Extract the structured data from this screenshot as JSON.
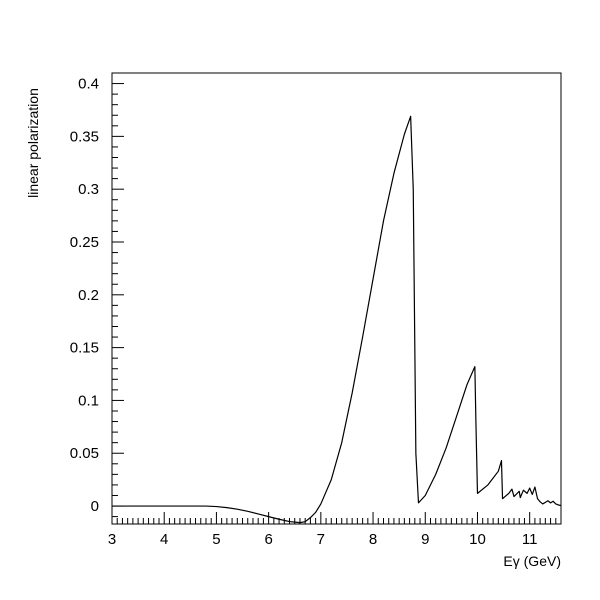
{
  "chart_data": {
    "type": "line",
    "title": "",
    "xlabel": "Eγ (GeV)",
    "ylabel": "linear polarization",
    "xlim": [
      3,
      11.6
    ],
    "ylim": [
      -0.017,
      0.41
    ],
    "x_ticks": [
      "3",
      "4",
      "5",
      "6",
      "7",
      "8",
      "9",
      "10",
      "11"
    ],
    "y_ticks": [
      "0",
      "0.05",
      "0.1",
      "0.15",
      "0.2",
      "0.25",
      "0.3",
      "0.35",
      "0.4"
    ],
    "grid": false,
    "series": [
      {
        "name": "",
        "x": [
          3.0,
          4.0,
          4.8,
          5.0,
          5.2,
          5.4,
          5.6,
          5.8,
          6.0,
          6.2,
          6.4,
          6.6,
          6.7,
          6.8,
          6.9,
          7.0,
          7.2,
          7.4,
          7.6,
          7.8,
          8.0,
          8.2,
          8.4,
          8.6,
          8.72,
          8.77,
          8.82,
          8.87,
          9.0,
          9.2,
          9.4,
          9.6,
          9.8,
          9.95,
          9.97,
          10.0,
          10.2,
          10.4,
          10.46,
          10.48,
          10.6,
          10.66,
          10.7,
          10.8,
          10.82,
          10.88,
          10.95,
          11.0,
          11.05,
          11.1,
          11.15,
          11.2,
          11.25,
          11.3,
          11.35,
          11.4,
          11.45,
          11.5,
          11.55,
          11.6
        ],
        "y": [
          0.0,
          0.0,
          0.0,
          -0.0005,
          -0.0015,
          -0.003,
          -0.005,
          -0.0075,
          -0.01,
          -0.0125,
          -0.0147,
          -0.0157,
          -0.0148,
          -0.011,
          -0.006,
          0.002,
          0.025,
          0.06,
          0.107,
          0.16,
          0.215,
          0.27,
          0.315,
          0.352,
          0.369,
          0.3,
          0.05,
          0.003,
          0.01,
          0.03,
          0.055,
          0.085,
          0.115,
          0.132,
          0.08,
          0.012,
          0.02,
          0.033,
          0.043,
          0.007,
          0.012,
          0.016,
          0.009,
          0.014,
          0.008,
          0.015,
          0.012,
          0.017,
          0.011,
          0.018,
          0.007,
          0.004,
          0.002,
          0.0035,
          0.005,
          0.003,
          0.0045,
          0.002,
          0.001,
          0.0005
        ]
      }
    ]
  }
}
